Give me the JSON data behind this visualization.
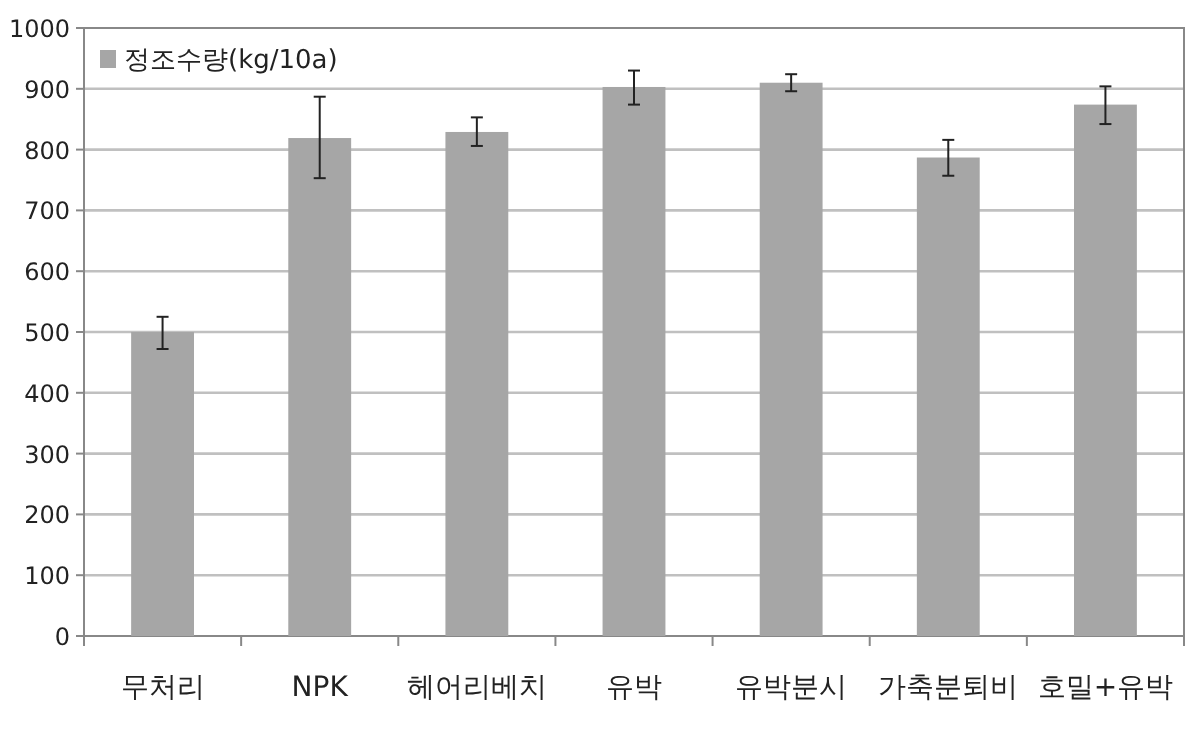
{
  "chart_data": {
    "type": "bar",
    "categories": [
      "무처리",
      "NPK",
      "헤어리베치",
      "유박",
      "유박분시",
      "가축분퇴비",
      "호밀+유박"
    ],
    "series": [
      {
        "name": "정조수량(kg/10a)",
        "color": "#a6a6a6",
        "values": [
          500,
          819,
          829,
          903,
          910,
          787,
          874
        ],
        "errors": [
          [
            472,
            525
          ],
          [
            753,
            887
          ],
          [
            806,
            853
          ],
          [
            874,
            930
          ],
          [
            896,
            924
          ],
          [
            757,
            816
          ],
          [
            842,
            904
          ]
        ]
      }
    ],
    "ylim": [
      0,
      1000
    ],
    "yticks": [
      0,
      100,
      200,
      300,
      400,
      500,
      600,
      700,
      800,
      900,
      1000
    ],
    "grid": "y",
    "legend": "top left"
  }
}
